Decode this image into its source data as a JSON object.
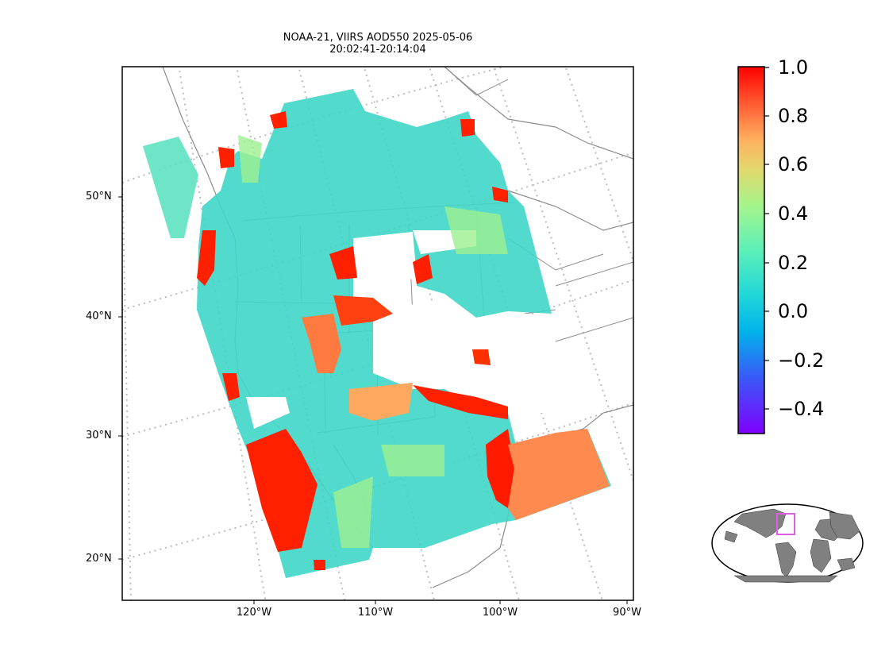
{
  "title": {
    "line1": "NOAA-21, VIIRS AOD550 2025-05-06",
    "line2": "20:02:41-20:14:04"
  },
  "map": {
    "lat_labels": [
      "50°N",
      "40°N",
      "30°N",
      "20°N"
    ],
    "lon_labels": [
      "120°W",
      "110°W",
      "100°W",
      "90°W"
    ],
    "grid": "on",
    "projection": "lambert-conformal",
    "colormap": "rainbow",
    "colorbar_range": [
      -0.5,
      1.0
    ]
  },
  "colorbar": {
    "ticks": [
      "1.0",
      "0.8",
      "0.6",
      "0.4",
      "0.2",
      "0.0",
      "−0.2",
      "−0.4"
    ]
  },
  "inset": {
    "name": "globe-locator",
    "region_color": "#e05ce0"
  }
}
